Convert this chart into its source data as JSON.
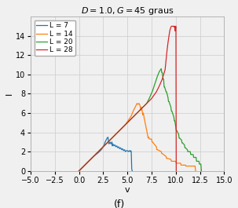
{
  "title": "$D = 1.0, G = 45$ graus",
  "xlabel": "v",
  "ylabel": "I",
  "xlim": [
    -5.0,
    15.0
  ],
  "ylim": [
    0,
    16
  ],
  "xticks": [
    -5.0,
    -2.5,
    0.0,
    2.5,
    5.0,
    7.5,
    10.0,
    12.5,
    15.0
  ],
  "yticks": [
    0,
    2,
    4,
    6,
    8,
    10,
    12,
    14
  ],
  "footer": "(f)",
  "series": [
    {
      "label": "L = 7",
      "color": "#1f77b4",
      "data": [
        [
          0.0,
          0.0
        ],
        [
          0.5,
          0.5
        ],
        [
          1.0,
          1.0
        ],
        [
          1.5,
          1.5
        ],
        [
          2.0,
          1.9
        ],
        [
          2.3,
          2.2
        ],
        [
          2.5,
          2.5
        ],
        [
          2.6,
          2.7
        ],
        [
          2.7,
          3.0
        ],
        [
          2.8,
          3.2
        ],
        [
          2.9,
          3.4
        ],
        [
          3.0,
          3.5
        ],
        [
          3.05,
          2.9
        ],
        [
          3.1,
          2.8
        ],
        [
          3.2,
          3.0
        ],
        [
          3.3,
          2.8
        ],
        [
          3.4,
          3.0
        ],
        [
          3.45,
          2.6
        ],
        [
          3.5,
          2.8
        ],
        [
          3.6,
          2.6
        ],
        [
          3.7,
          2.7
        ],
        [
          3.8,
          2.5
        ],
        [
          3.9,
          2.6
        ],
        [
          4.0,
          2.4
        ],
        [
          4.1,
          2.5
        ],
        [
          4.2,
          2.3
        ],
        [
          4.3,
          2.4
        ],
        [
          4.4,
          2.2
        ],
        [
          4.5,
          2.3
        ],
        [
          4.6,
          2.1
        ],
        [
          4.7,
          2.2
        ],
        [
          4.8,
          2.0
        ],
        [
          4.9,
          2.1
        ],
        [
          5.0,
          2.1
        ],
        [
          5.1,
          2.0
        ],
        [
          5.2,
          2.1
        ],
        [
          5.3,
          2.0
        ],
        [
          5.35,
          2.1
        ],
        [
          5.4,
          2.0
        ],
        [
          5.45,
          0.2
        ],
        [
          5.5,
          0.0
        ]
      ]
    },
    {
      "label": "L = 14",
      "color": "#ff7f0e",
      "data": [
        [
          0.0,
          0.0
        ],
        [
          0.5,
          0.5
        ],
        [
          1.0,
          1.0
        ],
        [
          1.5,
          1.5
        ],
        [
          2.0,
          2.0
        ],
        [
          2.5,
          2.5
        ],
        [
          3.0,
          3.0
        ],
        [
          3.5,
          3.5
        ],
        [
          4.0,
          4.0
        ],
        [
          4.5,
          4.5
        ],
        [
          4.8,
          4.8
        ],
        [
          5.0,
          5.1
        ],
        [
          5.2,
          5.4
        ],
        [
          5.4,
          5.7
        ],
        [
          5.6,
          6.2
        ],
        [
          5.8,
          6.6
        ],
        [
          6.0,
          7.0
        ],
        [
          6.1,
          6.9
        ],
        [
          6.2,
          7.0
        ],
        [
          6.3,
          6.8
        ],
        [
          6.35,
          6.5
        ],
        [
          6.4,
          6.3
        ],
        [
          6.45,
          6.6
        ],
        [
          6.5,
          6.4
        ],
        [
          6.55,
          6.1
        ],
        [
          6.6,
          5.8
        ],
        [
          6.65,
          6.0
        ],
        [
          6.7,
          5.7
        ],
        [
          6.75,
          5.4
        ],
        [
          6.8,
          5.2
        ],
        [
          6.85,
          4.9
        ],
        [
          6.9,
          4.7
        ],
        [
          6.95,
          4.4
        ],
        [
          7.0,
          4.2
        ],
        [
          7.05,
          3.9
        ],
        [
          7.1,
          3.7
        ],
        [
          7.15,
          3.4
        ],
        [
          7.2,
          3.5
        ],
        [
          7.3,
          3.3
        ],
        [
          7.5,
          3.3
        ],
        [
          7.55,
          3.0
        ],
        [
          7.6,
          3.0
        ],
        [
          8.0,
          2.5
        ],
        [
          8.05,
          2.2
        ],
        [
          8.1,
          2.2
        ],
        [
          8.5,
          2.0
        ],
        [
          8.55,
          1.8
        ],
        [
          8.6,
          1.8
        ],
        [
          9.0,
          1.5
        ],
        [
          9.05,
          1.3
        ],
        [
          9.1,
          1.3
        ],
        [
          9.5,
          1.2
        ],
        [
          9.55,
          1.0
        ],
        [
          9.6,
          1.0
        ],
        [
          10.0,
          1.0
        ],
        [
          10.05,
          0.8
        ],
        [
          10.1,
          0.8
        ],
        [
          10.5,
          0.8
        ],
        [
          10.55,
          0.6
        ],
        [
          10.6,
          0.6
        ],
        [
          11.0,
          0.6
        ],
        [
          11.05,
          0.5
        ],
        [
          12.0,
          0.5
        ],
        [
          12.05,
          0.0
        ]
      ]
    },
    {
      "label": "L = 20",
      "color": "#2ca02c",
      "data": [
        [
          0.0,
          0.0
        ],
        [
          0.5,
          0.5
        ],
        [
          1.0,
          1.0
        ],
        [
          1.5,
          1.5
        ],
        [
          2.0,
          2.0
        ],
        [
          2.5,
          2.5
        ],
        [
          3.0,
          3.0
        ],
        [
          3.5,
          3.5
        ],
        [
          4.0,
          4.0
        ],
        [
          4.5,
          4.5
        ],
        [
          5.0,
          5.0
        ],
        [
          5.5,
          5.5
        ],
        [
          6.0,
          6.0
        ],
        [
          6.5,
          6.5
        ],
        [
          7.0,
          7.0
        ],
        [
          7.3,
          7.6
        ],
        [
          7.6,
          8.3
        ],
        [
          7.9,
          9.2
        ],
        [
          8.1,
          9.8
        ],
        [
          8.3,
          10.3
        ],
        [
          8.5,
          10.6
        ],
        [
          8.55,
          10.2
        ],
        [
          8.6,
          10.2
        ],
        [
          8.7,
          9.5
        ],
        [
          8.75,
          9.5
        ],
        [
          8.8,
          8.7
        ],
        [
          8.85,
          8.7
        ],
        [
          9.0,
          8.2
        ],
        [
          9.05,
          8.2
        ],
        [
          9.2,
          7.6
        ],
        [
          9.25,
          7.2
        ],
        [
          9.3,
          7.2
        ],
        [
          9.5,
          6.6
        ],
        [
          9.55,
          6.2
        ],
        [
          9.6,
          6.2
        ],
        [
          9.8,
          5.6
        ],
        [
          9.85,
          5.2
        ],
        [
          9.9,
          5.2
        ],
        [
          10.0,
          4.6
        ],
        [
          10.05,
          4.2
        ],
        [
          10.1,
          4.2
        ],
        [
          10.3,
          3.8
        ],
        [
          10.35,
          3.4
        ],
        [
          10.4,
          3.4
        ],
        [
          10.6,
          3.2
        ],
        [
          10.65,
          2.9
        ],
        [
          10.7,
          2.9
        ],
        [
          10.9,
          2.7
        ],
        [
          10.95,
          2.4
        ],
        [
          11.0,
          2.4
        ],
        [
          11.2,
          2.2
        ],
        [
          11.25,
          2.0
        ],
        [
          11.3,
          2.0
        ],
        [
          11.5,
          2.0
        ],
        [
          11.55,
          1.7
        ],
        [
          11.6,
          1.7
        ],
        [
          11.8,
          1.7
        ],
        [
          11.85,
          1.4
        ],
        [
          11.9,
          1.4
        ],
        [
          12.1,
          1.4
        ],
        [
          12.15,
          1.0
        ],
        [
          12.2,
          1.0
        ],
        [
          12.4,
          1.0
        ],
        [
          12.45,
          0.7
        ],
        [
          12.5,
          0.7
        ],
        [
          12.6,
          0.7
        ],
        [
          12.65,
          0.0
        ]
      ]
    },
    {
      "label": "L = 28",
      "color": "#d62728",
      "data": [
        [
          0.0,
          0.0
        ],
        [
          0.5,
          0.5
        ],
        [
          1.0,
          1.0
        ],
        [
          1.5,
          1.5
        ],
        [
          2.0,
          2.0
        ],
        [
          2.5,
          2.5
        ],
        [
          3.0,
          3.0
        ],
        [
          3.5,
          3.5
        ],
        [
          4.0,
          4.0
        ],
        [
          4.5,
          4.5
        ],
        [
          5.0,
          5.0
        ],
        [
          5.5,
          5.5
        ],
        [
          6.0,
          6.0
        ],
        [
          6.5,
          6.5
        ],
        [
          7.0,
          7.0
        ],
        [
          7.5,
          7.5
        ],
        [
          8.0,
          8.2
        ],
        [
          8.3,
          8.8
        ],
        [
          8.6,
          9.5
        ],
        [
          8.9,
          10.5
        ],
        [
          9.0,
          11.5
        ],
        [
          9.1,
          12.5
        ],
        [
          9.2,
          13.3
        ],
        [
          9.3,
          14.0
        ],
        [
          9.4,
          14.6
        ],
        [
          9.5,
          14.9
        ],
        [
          9.55,
          15.0
        ],
        [
          9.6,
          15.0
        ],
        [
          9.65,
          15.0
        ],
        [
          9.7,
          15.0
        ],
        [
          9.75,
          15.0
        ],
        [
          9.8,
          15.0
        ],
        [
          9.85,
          14.9
        ],
        [
          9.9,
          15.0
        ],
        [
          9.95,
          14.5
        ],
        [
          10.0,
          15.0
        ],
        [
          10.02,
          14.8
        ],
        [
          10.05,
          0.0
        ]
      ]
    }
  ],
  "grid_color": "#cccccc",
  "bg_color": "#f0f0f0",
  "spine_color": "#aaaaaa"
}
